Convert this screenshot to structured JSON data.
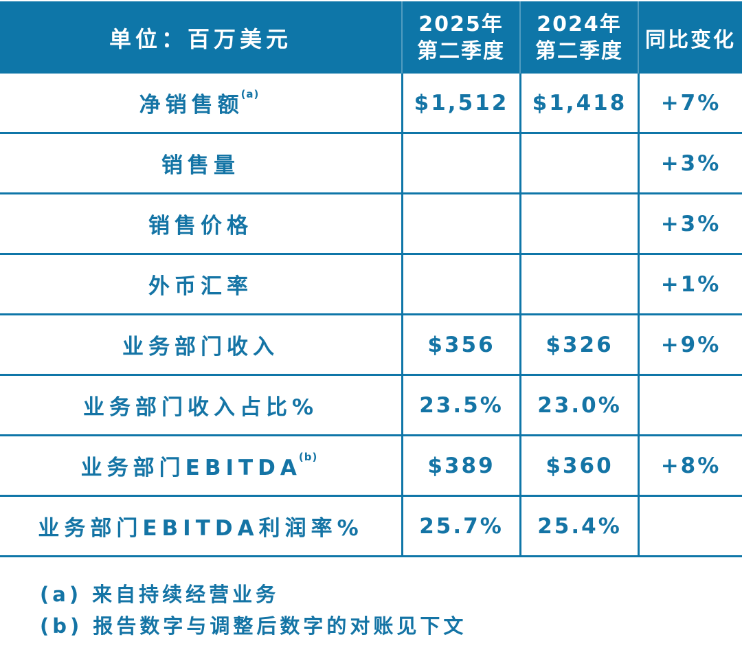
{
  "colors": {
    "primary": "#0e76a8",
    "border": "#0f76a8",
    "text": "#1474a5",
    "header_text": "#ffffff",
    "header_divider": "rgba(255,255,255,0.28)"
  },
  "table": {
    "header": {
      "unit_label": "单位：百万美元",
      "q2_2025": {
        "line1": "2025年",
        "line2": "第二季度"
      },
      "q2_2024": {
        "line1": "2024年",
        "line2": "第二季度"
      },
      "yoy_label": "同比变化"
    },
    "rows": [
      {
        "label": "净销售额",
        "sup": "(a)",
        "q2_2025": "$1,512",
        "q2_2024": "$1,418",
        "yoy": "+7%"
      },
      {
        "label": "销售量",
        "sup": "",
        "q2_2025": "",
        "q2_2024": "",
        "yoy": "+3%"
      },
      {
        "label": "销售价格",
        "sup": "",
        "q2_2025": "",
        "q2_2024": "",
        "yoy": "+3%"
      },
      {
        "label": "外币汇率",
        "sup": "",
        "q2_2025": "",
        "q2_2024": "",
        "yoy": "+1%"
      },
      {
        "label": "业务部门收入",
        "sup": "",
        "q2_2025": "$356",
        "q2_2024": "$326",
        "yoy": "+9%"
      },
      {
        "label": "业务部门收入占比%",
        "sup": "",
        "q2_2025": "23.5%",
        "q2_2024": "23.0%",
        "yoy": ""
      },
      {
        "label": "业务部门EBITDA",
        "sup": "(b)",
        "q2_2025": "$389",
        "q2_2024": "$360",
        "yoy": "+8%"
      },
      {
        "label": "业务部门EBITDA利润率%",
        "sup": "",
        "q2_2025": "25.7%",
        "q2_2024": "25.4%",
        "yoy": ""
      }
    ]
  },
  "footnotes": [
    "(a) 来自持续经营业务",
    "(b) 报告数字与调整后数字的对账见下文"
  ]
}
